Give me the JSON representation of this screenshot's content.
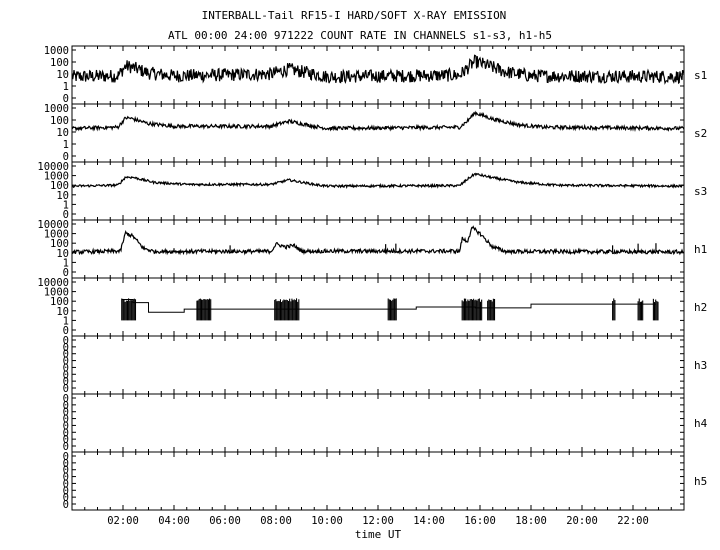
{
  "header": {
    "title": "INTERBALL-Tail RF15-I HARD/SOFT X-RAY EMISSION",
    "subtitle": "ATL 00:00 24:00 971222  COUNT RATE IN CHANNELS s1-s3, h1-h5"
  },
  "chart_data": {
    "type": "line",
    "title": "INTERBALL-Tail RF15-I HARD/SOFT X-RAY EMISSION",
    "subtitle": "ATL 00:00 24:00 971222  COUNT RATE IN CHANNELS s1-s3, h1-h5",
    "xlabel": "time UT",
    "xlim_hours": [
      0,
      24
    ],
    "x_ticks": [
      "02:00",
      "04:00",
      "06:00",
      "08:00",
      "10:00",
      "12:00",
      "14:00",
      "16:00",
      "18:00",
      "20:00",
      "22:00"
    ],
    "y_scale": "log",
    "grid": false,
    "panels": [
      {
        "name": "s1",
        "y_ticks": [
          "1000",
          "100",
          "10",
          "1",
          "0"
        ],
        "baseline": 6,
        "noise": 0.55,
        "series": [
          [
            0,
            6
          ],
          [
            1.8,
            7
          ],
          [
            2.1,
            45
          ],
          [
            2.3,
            40
          ],
          [
            3.0,
            12
          ],
          [
            4,
            7
          ],
          [
            7.8,
            10
          ],
          [
            8.5,
            25
          ],
          [
            9.5,
            10
          ],
          [
            10,
            6
          ],
          [
            15.2,
            8
          ],
          [
            15.5,
            30
          ],
          [
            15.8,
            110
          ],
          [
            16.2,
            60
          ],
          [
            17.0,
            15
          ],
          [
            18,
            7
          ],
          [
            24,
            6
          ]
        ]
      },
      {
        "name": "s2",
        "y_ticks": [
          "1000",
          "100",
          "10",
          "1",
          "0"
        ],
        "baseline": 20,
        "noise": 0.15,
        "series": [
          [
            0,
            20
          ],
          [
            1.8,
            25
          ],
          [
            2.1,
            150
          ],
          [
            2.3,
            140
          ],
          [
            3.0,
            50
          ],
          [
            4.0,
            30
          ],
          [
            7.8,
            30
          ],
          [
            8.5,
            80
          ],
          [
            9.5,
            30
          ],
          [
            10,
            20
          ],
          [
            15.2,
            25
          ],
          [
            15.5,
            80
          ],
          [
            15.8,
            400
          ],
          [
            16.5,
            120
          ],
          [
            17.5,
            40
          ],
          [
            18.5,
            25
          ],
          [
            24,
            20
          ]
        ]
      },
      {
        "name": "s3",
        "y_ticks": [
          "10000",
          "1000",
          "100",
          "10",
          "1",
          "0"
        ],
        "baseline": 70,
        "noise": 0.12,
        "series": [
          [
            0,
            80
          ],
          [
            1.8,
            100
          ],
          [
            2.1,
            700
          ],
          [
            2.4,
            650
          ],
          [
            3.2,
            200
          ],
          [
            4.5,
            120
          ],
          [
            7.8,
            120
          ],
          [
            8.5,
            350
          ],
          [
            9.5,
            120
          ],
          [
            10,
            80
          ],
          [
            15.2,
            90
          ],
          [
            15.5,
            400
          ],
          [
            15.8,
            1500
          ],
          [
            16.5,
            600
          ],
          [
            17.5,
            200
          ],
          [
            19,
            100
          ],
          [
            24,
            80
          ]
        ]
      },
      {
        "name": "h1",
        "y_ticks": [
          "10000",
          "1000",
          "100",
          "10",
          "1",
          "0"
        ],
        "baseline": 12,
        "noise": 0.2,
        "series": [
          [
            0,
            12
          ],
          [
            1.9,
            15
          ],
          [
            2.1,
            1200
          ],
          [
            2.4,
            500
          ],
          [
            2.8,
            30
          ],
          [
            3.2,
            14
          ],
          [
            7.8,
            14
          ],
          [
            8.0,
            80
          ],
          [
            8.4,
            40
          ],
          [
            8.7,
            60
          ],
          [
            9.0,
            15
          ],
          [
            15.2,
            15
          ],
          [
            15.3,
            300
          ],
          [
            15.5,
            150
          ],
          [
            15.7,
            4000
          ],
          [
            16.0,
            1000
          ],
          [
            16.5,
            40
          ],
          [
            17.0,
            14
          ],
          [
            24,
            12
          ]
        ]
      },
      {
        "name": "h2",
        "y_ticks": [
          "10000",
          "1000",
          "100",
          "10",
          "1",
          "0"
        ],
        "series": [
          [
            1.95,
            150
          ],
          [
            2.4,
            70
          ],
          [
            3.0,
            7
          ],
          [
            4.0,
            7
          ],
          [
            4.4,
            15
          ],
          [
            6.0,
            15
          ],
          [
            8.5,
            15
          ],
          [
            12.5,
            15
          ],
          [
            13.5,
            25
          ],
          [
            15.2,
            25
          ],
          [
            15.8,
            20
          ],
          [
            16.8,
            20
          ],
          [
            18.0,
            50
          ],
          [
            20.8,
            50
          ],
          [
            22.9,
            50
          ]
        ]
      },
      {
        "name": "h3",
        "y_ticks": [
          "0",
          "0",
          "0",
          "0",
          "0",
          "0",
          "0",
          "0"
        ],
        "series": []
      },
      {
        "name": "h4",
        "y_ticks": [
          "0",
          "0",
          "0",
          "0",
          "0",
          "0",
          "0",
          "0"
        ],
        "series": []
      },
      {
        "name": "h5",
        "y_ticks": [
          "0",
          "0",
          "0",
          "0",
          "0",
          "0",
          "0",
          "0"
        ],
        "series": []
      }
    ]
  }
}
